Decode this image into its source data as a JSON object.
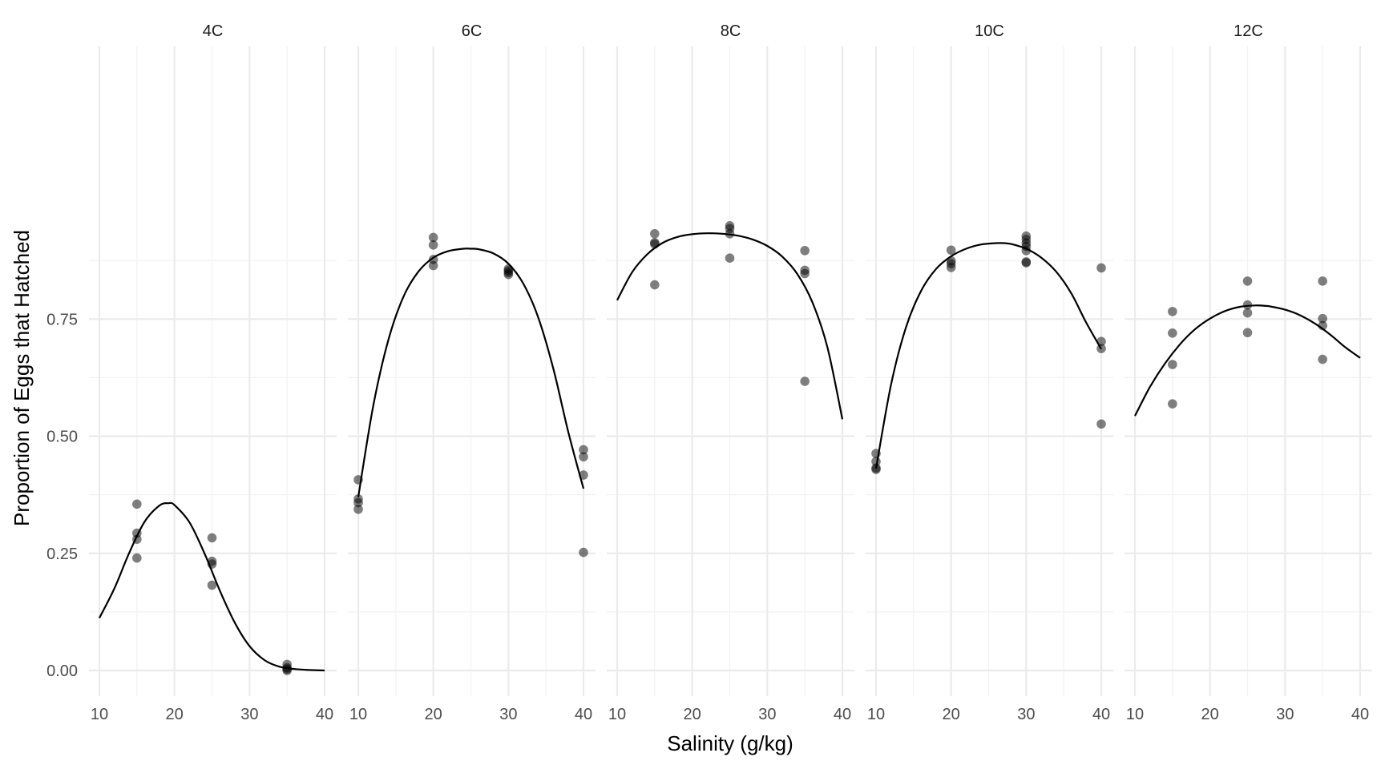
{
  "chart_data": {
    "type": "scatter",
    "xlabel": "Salinity (g/kg)",
    "ylabel": "Proportion of Eggs that Hatched",
    "xlim": [
      10,
      40
    ],
    "ylim": [
      -0.04,
      1.0
    ],
    "x_ticks": [
      "10",
      "20",
      "30",
      "40"
    ],
    "y_ticks": [
      "0.00",
      "0.25",
      "0.50",
      "0.75"
    ],
    "grid": true,
    "point_color": "#000000",
    "point_opacity": 0.5,
    "line_color": "#000000",
    "panels": [
      {
        "label": "4C",
        "points": [
          {
            "x": 15,
            "y": 0.355
          },
          {
            "x": 15,
            "y": 0.293
          },
          {
            "x": 15,
            "y": 0.28
          },
          {
            "x": 15,
            "y": 0.24
          },
          {
            "x": 25,
            "y": 0.283
          },
          {
            "x": 25,
            "y": 0.233
          },
          {
            "x": 25,
            "y": 0.227
          },
          {
            "x": 25,
            "y": 0.182
          },
          {
            "x": 35,
            "y": 0.013
          },
          {
            "x": 35,
            "y": 0.006
          },
          {
            "x": 35,
            "y": 0.003
          },
          {
            "x": 35,
            "y": 0.0
          }
        ],
        "curve": [
          {
            "x": 10,
            "y": 0.112
          },
          {
            "x": 12,
            "y": 0.175
          },
          {
            "x": 14,
            "y": 0.252
          },
          {
            "x": 16,
            "y": 0.317
          },
          {
            "x": 18,
            "y": 0.352
          },
          {
            "x": 19.2,
            "y": 0.357
          },
          {
            "x": 20,
            "y": 0.353
          },
          {
            "x": 22,
            "y": 0.316
          },
          {
            "x": 24,
            "y": 0.25
          },
          {
            "x": 26,
            "y": 0.172
          },
          {
            "x": 28,
            "y": 0.103
          },
          {
            "x": 30,
            "y": 0.052
          },
          {
            "x": 32,
            "y": 0.022
          },
          {
            "x": 34,
            "y": 0.008
          },
          {
            "x": 36,
            "y": 0.003
          },
          {
            "x": 38,
            "y": 0.001
          },
          {
            "x": 40,
            "y": 0.0
          }
        ]
      },
      {
        "label": "6C",
        "points": [
          {
            "x": 10,
            "y": 0.407
          },
          {
            "x": 10,
            "y": 0.366
          },
          {
            "x": 10,
            "y": 0.358
          },
          {
            "x": 10,
            "y": 0.344
          },
          {
            "x": 20,
            "y": 0.924
          },
          {
            "x": 20,
            "y": 0.908
          },
          {
            "x": 20,
            "y": 0.877
          },
          {
            "x": 20,
            "y": 0.864
          },
          {
            "x": 30,
            "y": 0.857
          },
          {
            "x": 30,
            "y": 0.853
          },
          {
            "x": 30,
            "y": 0.849
          },
          {
            "x": 30,
            "y": 0.845
          },
          {
            "x": 40,
            "y": 0.471
          },
          {
            "x": 40,
            "y": 0.456
          },
          {
            "x": 40,
            "y": 0.417
          },
          {
            "x": 40,
            "y": 0.252
          }
        ],
        "curve": [
          {
            "x": 10,
            "y": 0.37
          },
          {
            "x": 12,
            "y": 0.565
          },
          {
            "x": 14,
            "y": 0.705
          },
          {
            "x": 16,
            "y": 0.797
          },
          {
            "x": 18,
            "y": 0.851
          },
          {
            "x": 20,
            "y": 0.881
          },
          {
            "x": 22,
            "y": 0.895
          },
          {
            "x": 24,
            "y": 0.9
          },
          {
            "x": 25,
            "y": 0.9
          },
          {
            "x": 26,
            "y": 0.899
          },
          {
            "x": 28,
            "y": 0.89
          },
          {
            "x": 30,
            "y": 0.868
          },
          {
            "x": 32,
            "y": 0.825
          },
          {
            "x": 34,
            "y": 0.752
          },
          {
            "x": 36,
            "y": 0.643
          },
          {
            "x": 38,
            "y": 0.507
          },
          {
            "x": 40,
            "y": 0.388
          }
        ]
      },
      {
        "label": "8C",
        "points": [
          {
            "x": 15,
            "y": 0.932
          },
          {
            "x": 15,
            "y": 0.913
          },
          {
            "x": 15,
            "y": 0.91
          },
          {
            "x": 15,
            "y": 0.823
          },
          {
            "x": 25,
            "y": 0.949
          },
          {
            "x": 25,
            "y": 0.943
          },
          {
            "x": 25,
            "y": 0.932
          },
          {
            "x": 25,
            "y": 0.88
          },
          {
            "x": 35,
            "y": 0.896
          },
          {
            "x": 35,
            "y": 0.854
          },
          {
            "x": 35,
            "y": 0.847
          },
          {
            "x": 35,
            "y": 0.617
          }
        ],
        "curve": [
          {
            "x": 10,
            "y": 0.79
          },
          {
            "x": 12,
            "y": 0.85
          },
          {
            "x": 14,
            "y": 0.888
          },
          {
            "x": 16,
            "y": 0.912
          },
          {
            "x": 18,
            "y": 0.925
          },
          {
            "x": 20,
            "y": 0.931
          },
          {
            "x": 22,
            "y": 0.933
          },
          {
            "x": 24,
            "y": 0.932
          },
          {
            "x": 26,
            "y": 0.928
          },
          {
            "x": 28,
            "y": 0.92
          },
          {
            "x": 30,
            "y": 0.906
          },
          {
            "x": 32,
            "y": 0.883
          },
          {
            "x": 34,
            "y": 0.846
          },
          {
            "x": 36,
            "y": 0.786
          },
          {
            "x": 38,
            "y": 0.69
          },
          {
            "x": 40,
            "y": 0.536
          }
        ]
      },
      {
        "label": "10C",
        "points": [
          {
            "x": 10,
            "y": 0.463
          },
          {
            "x": 10,
            "y": 0.446
          },
          {
            "x": 10,
            "y": 0.432
          },
          {
            "x": 10,
            "y": 0.429
          },
          {
            "x": 20,
            "y": 0.897
          },
          {
            "x": 20,
            "y": 0.874
          },
          {
            "x": 20,
            "y": 0.868
          },
          {
            "x": 20,
            "y": 0.86
          },
          {
            "x": 30,
            "y": 0.927
          },
          {
            "x": 30,
            "y": 0.92
          },
          {
            "x": 30,
            "y": 0.912
          },
          {
            "x": 30,
            "y": 0.905
          },
          {
            "x": 30,
            "y": 0.896
          },
          {
            "x": 30,
            "y": 0.872
          },
          {
            "x": 30,
            "y": 0.87
          },
          {
            "x": 40,
            "y": 0.859
          },
          {
            "x": 40,
            "y": 0.702
          },
          {
            "x": 40,
            "y": 0.687
          },
          {
            "x": 40,
            "y": 0.526
          }
        ],
        "curve": [
          {
            "x": 10,
            "y": 0.431
          },
          {
            "x": 12,
            "y": 0.61
          },
          {
            "x": 14,
            "y": 0.733
          },
          {
            "x": 16,
            "y": 0.81
          },
          {
            "x": 18,
            "y": 0.857
          },
          {
            "x": 20,
            "y": 0.884
          },
          {
            "x": 22,
            "y": 0.9
          },
          {
            "x": 24,
            "y": 0.909
          },
          {
            "x": 26,
            "y": 0.912
          },
          {
            "x": 27,
            "y": 0.912
          },
          {
            "x": 28,
            "y": 0.91
          },
          {
            "x": 30,
            "y": 0.9
          },
          {
            "x": 32,
            "y": 0.881
          },
          {
            "x": 34,
            "y": 0.851
          },
          {
            "x": 36,
            "y": 0.805
          },
          {
            "x": 38,
            "y": 0.742
          },
          {
            "x": 40,
            "y": 0.686
          }
        ]
      },
      {
        "label": "12C",
        "points": [
          {
            "x": 15,
            "y": 0.766
          },
          {
            "x": 15,
            "y": 0.72
          },
          {
            "x": 15,
            "y": 0.653
          },
          {
            "x": 15,
            "y": 0.569
          },
          {
            "x": 25,
            "y": 0.831
          },
          {
            "x": 25,
            "y": 0.78
          },
          {
            "x": 25,
            "y": 0.763
          },
          {
            "x": 25,
            "y": 0.721
          },
          {
            "x": 35,
            "y": 0.831
          },
          {
            "x": 35,
            "y": 0.751
          },
          {
            "x": 35,
            "y": 0.736
          },
          {
            "x": 35,
            "y": 0.664
          }
        ],
        "curve": [
          {
            "x": 10,
            "y": 0.543
          },
          {
            "x": 12,
            "y": 0.605
          },
          {
            "x": 14,
            "y": 0.655
          },
          {
            "x": 16,
            "y": 0.696
          },
          {
            "x": 18,
            "y": 0.728
          },
          {
            "x": 20,
            "y": 0.751
          },
          {
            "x": 22,
            "y": 0.767
          },
          {
            "x": 24,
            "y": 0.776
          },
          {
            "x": 26,
            "y": 0.779
          },
          {
            "x": 27.5,
            "y": 0.778
          },
          {
            "x": 28,
            "y": 0.777
          },
          {
            "x": 30,
            "y": 0.77
          },
          {
            "x": 32,
            "y": 0.758
          },
          {
            "x": 34,
            "y": 0.74
          },
          {
            "x": 36,
            "y": 0.717
          },
          {
            "x": 38,
            "y": 0.69
          },
          {
            "x": 40,
            "y": 0.667
          }
        ]
      }
    ]
  }
}
